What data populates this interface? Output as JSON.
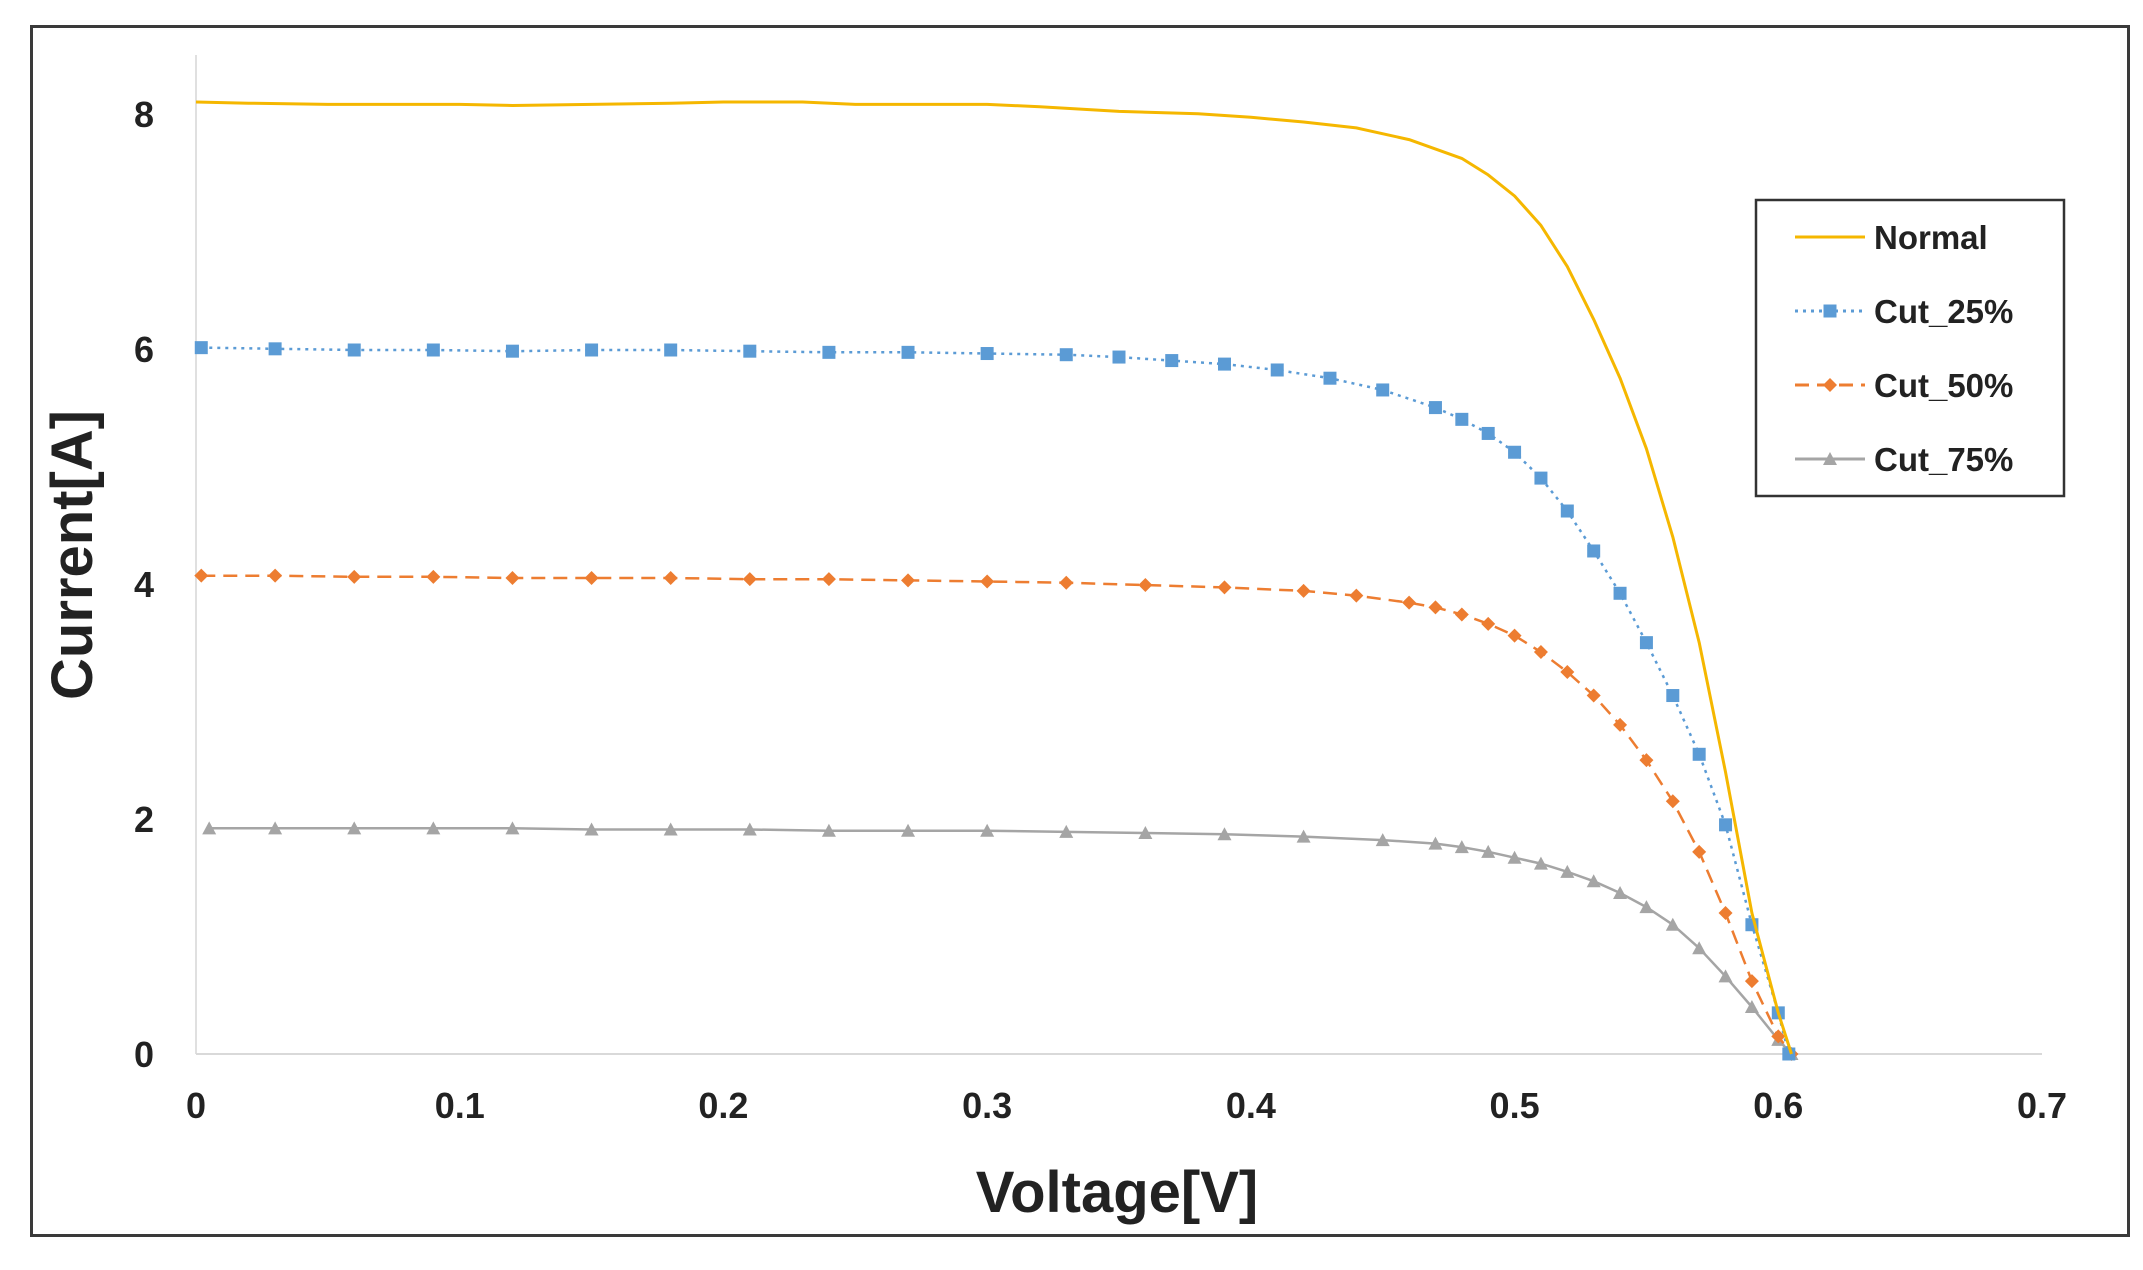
{
  "chart_data": {
    "type": "line",
    "title": "",
    "xlabel": "Voltage[V]",
    "ylabel": "Current[A]",
    "xlim": [
      0,
      0.7
    ],
    "ylim": [
      0,
      8.5
    ],
    "xticks": [
      "0",
      "0.1",
      "0.2",
      "0.3",
      "0.4",
      "0.5",
      "0.6",
      "0.7"
    ],
    "yticks": [
      "0",
      "2",
      "4",
      "6",
      "8"
    ],
    "grid": false,
    "legend_position": "right",
    "series": [
      {
        "name": "Normal",
        "color": "#f5b700",
        "style": "solid",
        "marker": "none",
        "x": [
          0,
          0.02,
          0.05,
          0.08,
          0.1,
          0.12,
          0.15,
          0.18,
          0.2,
          0.23,
          0.25,
          0.28,
          0.3,
          0.32,
          0.35,
          0.38,
          0.4,
          0.42,
          0.44,
          0.46,
          0.48,
          0.49,
          0.5,
          0.51,
          0.52,
          0.53,
          0.54,
          0.55,
          0.56,
          0.57,
          0.58,
          0.59,
          0.6,
          0.605
        ],
        "y": [
          8.1,
          8.09,
          8.08,
          8.08,
          8.08,
          8.07,
          8.08,
          8.09,
          8.1,
          8.1,
          8.08,
          8.08,
          8.08,
          8.06,
          8.02,
          8.0,
          7.97,
          7.93,
          7.88,
          7.78,
          7.62,
          7.48,
          7.3,
          7.05,
          6.7,
          6.25,
          5.75,
          5.15,
          4.4,
          3.5,
          2.4,
          1.2,
          0.35,
          0.0
        ]
      },
      {
        "name": "Cut_25%",
        "color": "#5b9bd5",
        "style": "dotted",
        "marker": "square",
        "x": [
          0.002,
          0.03,
          0.06,
          0.09,
          0.12,
          0.15,
          0.18,
          0.21,
          0.24,
          0.27,
          0.3,
          0.33,
          0.35,
          0.37,
          0.39,
          0.41,
          0.43,
          0.45,
          0.47,
          0.48,
          0.49,
          0.5,
          0.51,
          0.52,
          0.53,
          0.54,
          0.55,
          0.56,
          0.57,
          0.58,
          0.59,
          0.6,
          0.604
        ],
        "y": [
          6.01,
          6.0,
          5.99,
          5.99,
          5.98,
          5.99,
          5.99,
          5.98,
          5.97,
          5.97,
          5.96,
          5.95,
          5.93,
          5.9,
          5.87,
          5.82,
          5.75,
          5.65,
          5.5,
          5.4,
          5.28,
          5.12,
          4.9,
          4.62,
          4.28,
          3.92,
          3.5,
          3.05,
          2.55,
          1.95,
          1.1,
          0.35,
          0.0
        ]
      },
      {
        "name": "Cut_50%",
        "color": "#ed7d31",
        "style": "dashed",
        "marker": "diamond",
        "x": [
          0.002,
          0.03,
          0.06,
          0.09,
          0.12,
          0.15,
          0.18,
          0.21,
          0.24,
          0.27,
          0.3,
          0.33,
          0.36,
          0.39,
          0.42,
          0.44,
          0.46,
          0.47,
          0.48,
          0.49,
          0.5,
          0.51,
          0.52,
          0.53,
          0.54,
          0.55,
          0.56,
          0.57,
          0.58,
          0.59,
          0.6,
          0.605
        ],
        "y": [
          4.07,
          4.07,
          4.06,
          4.06,
          4.05,
          4.05,
          4.05,
          4.04,
          4.04,
          4.03,
          4.02,
          4.01,
          3.99,
          3.97,
          3.94,
          3.9,
          3.84,
          3.8,
          3.74,
          3.66,
          3.56,
          3.42,
          3.25,
          3.05,
          2.8,
          2.5,
          2.15,
          1.72,
          1.2,
          0.62,
          0.15,
          0.0
        ]
      },
      {
        "name": "Cut_75%",
        "color": "#a5a5a5",
        "style": "solid",
        "marker": "triangle",
        "x": [
          0.005,
          0.03,
          0.06,
          0.09,
          0.12,
          0.15,
          0.18,
          0.21,
          0.24,
          0.27,
          0.3,
          0.33,
          0.36,
          0.39,
          0.42,
          0.45,
          0.47,
          0.48,
          0.49,
          0.5,
          0.51,
          0.52,
          0.53,
          0.54,
          0.55,
          0.56,
          0.57,
          0.58,
          0.59,
          0.6,
          0.605
        ],
        "y": [
          1.92,
          1.92,
          1.92,
          1.92,
          1.92,
          1.91,
          1.91,
          1.91,
          1.9,
          1.9,
          1.9,
          1.89,
          1.88,
          1.87,
          1.85,
          1.82,
          1.79,
          1.76,
          1.72,
          1.67,
          1.62,
          1.55,
          1.47,
          1.37,
          1.25,
          1.1,
          0.9,
          0.66,
          0.4,
          0.12,
          0.0
        ]
      }
    ]
  }
}
